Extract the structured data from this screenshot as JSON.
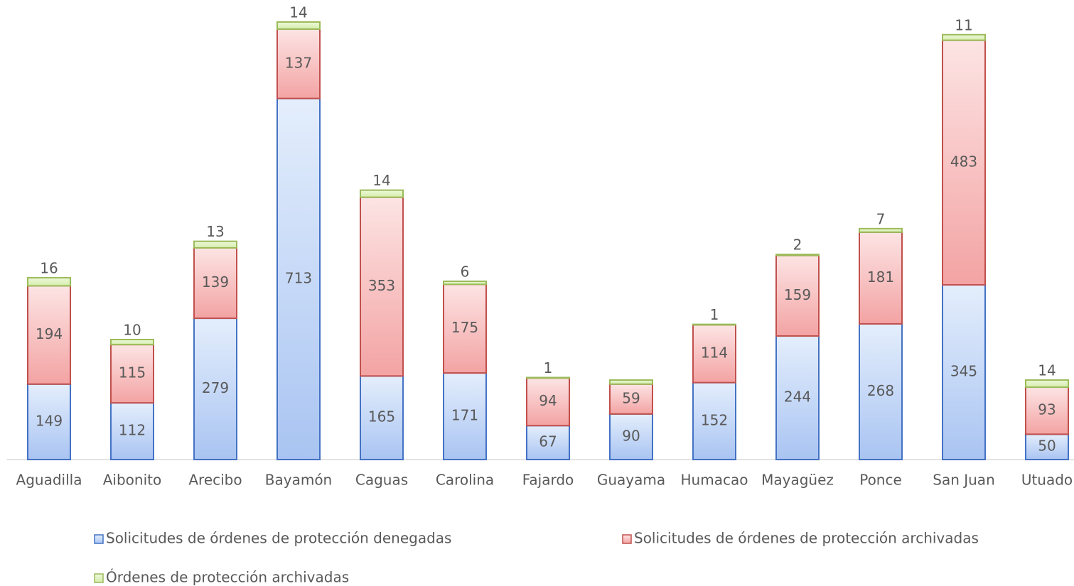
{
  "chart_data": {
    "type": "stacked_bar",
    "categories": [
      "Aguadilla",
      "Aibonito",
      "Arecibo",
      "Bayamón",
      "Caguas",
      "Carolina",
      "Fajardo",
      "Guayama",
      "Humacao",
      "Mayagüez",
      "Ponce",
      "San Juan",
      "Utuado"
    ],
    "series": [
      {
        "name": "Solicitudes de órdenes de protección denegadas",
        "color": "#4472c4",
        "values": [
          149,
          112,
          279,
          713,
          165,
          171,
          67,
          90,
          152,
          244,
          268,
          345,
          50
        ]
      },
      {
        "name": "Solicitudes de órdenes de protección archivadas",
        "color": "#c0504d",
        "values": [
          194,
          115,
          139,
          137,
          353,
          175,
          94,
          59,
          114,
          159,
          181,
          483,
          93
        ]
      },
      {
        "name": "Órdenes de protección archivadas",
        "color": "#9bbb59",
        "values": [
          16,
          10,
          13,
          14,
          14,
          6,
          1,
          8,
          1,
          2,
          7,
          11,
          14
        ],
        "value_labels": [
          "16",
          "10",
          "13",
          "14",
          "14",
          "6",
          "1",
          null,
          "1",
          "2",
          "7",
          "11",
          "14"
        ]
      }
    ],
    "ylim": [
      0,
      900
    ],
    "legend": "bottom"
  }
}
